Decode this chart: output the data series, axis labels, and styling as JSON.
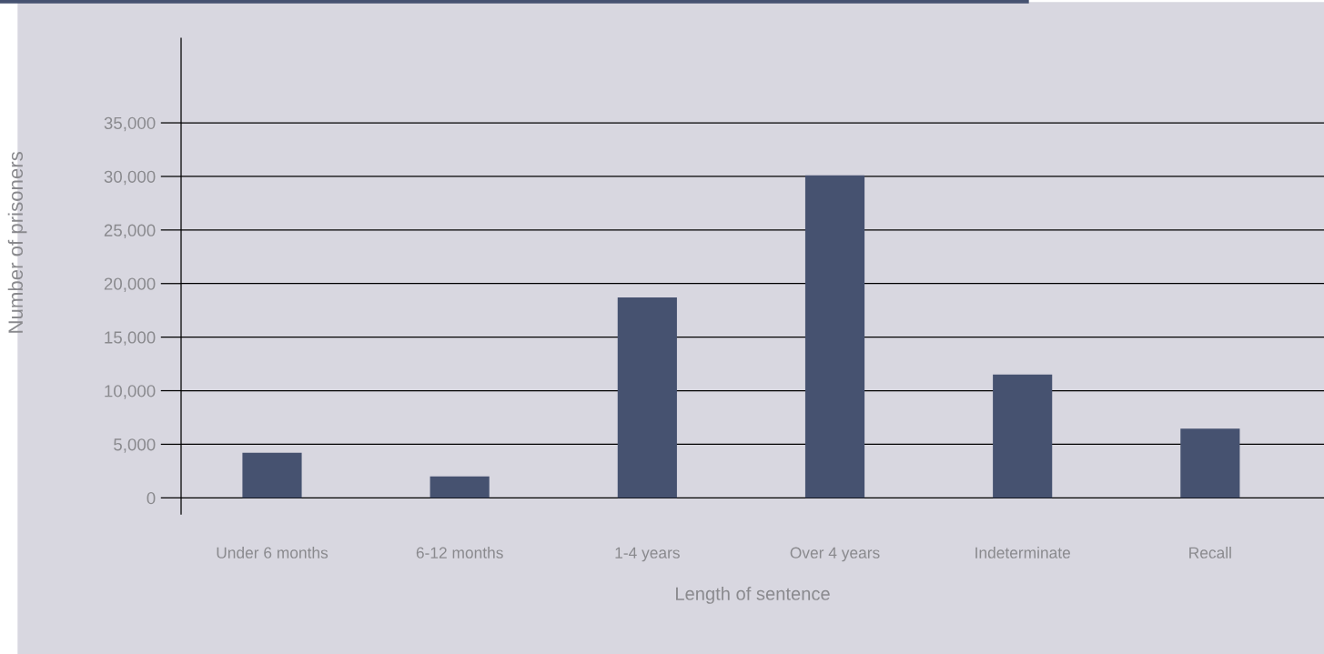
{
  "chart_data": {
    "type": "bar",
    "xlabel": "Length of sentence",
    "ylabel": "Number of prisoners",
    "categories": [
      "Under 6 months",
      "6-12 months",
      "1-4 years",
      "Over 4 years",
      "Indeterminate",
      "Recall"
    ],
    "values": [
      4200,
      2000,
      18700,
      30100,
      11500,
      6450
    ],
    "color": "#465270",
    "ylim": [
      -1500,
      42900
    ],
    "yticks": [
      {
        "value": 0,
        "label": "0"
      },
      {
        "value": 5000,
        "label": "5,000"
      },
      {
        "value": 10000,
        "label": "10,000"
      },
      {
        "value": 15000,
        "label": "15,000"
      },
      {
        "value": 20000,
        "label": "20,000"
      },
      {
        "value": 25000,
        "label": "25,000"
      },
      {
        "value": 30000,
        "label": "30,000"
      },
      {
        "value": 35000,
        "label": "35,000"
      }
    ],
    "grid": "y",
    "legend": false
  }
}
